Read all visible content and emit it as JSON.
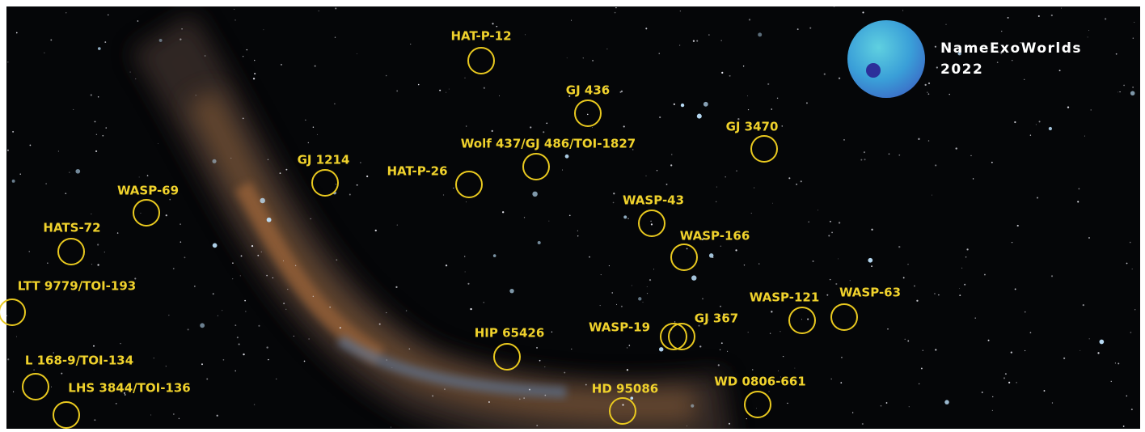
{
  "logo": {
    "title": "NameExoWorlds",
    "year": "2022"
  },
  "targets": [
    "HAT-P-12",
    "GJ 436",
    "GJ 3470",
    "Wolf 437/GJ 486/TOI-1827",
    "GJ 1214",
    "HAT-P-26",
    "WASP-69",
    "WASP-43",
    "HATS-72",
    "WASP-166",
    "LTT 9779/TOI-193",
    "WASP-121",
    "WASP-63",
    "WASP-19",
    "GJ 367",
    "HIP 65426",
    "L 168-9/TOI-134",
    "LHS 3844/TOI-136",
    "HD 95086",
    "WD 0806-661"
  ]
}
